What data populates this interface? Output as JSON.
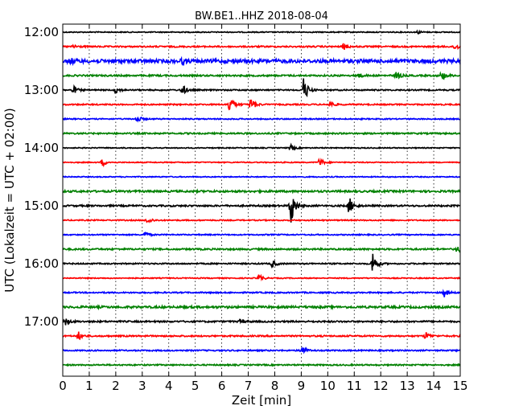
{
  "chart_data": {
    "type": "line",
    "title": "BW.BE1..HHZ 2018-08-04",
    "xlabel": "Zeit  [min]",
    "ylabel": "UTC (Lokalzeit = UTC + 02:00)",
    "xlim": [
      0,
      15
    ],
    "x_ticks": [
      "0",
      "1",
      "2",
      "3",
      "4",
      "5",
      "6",
      "7",
      "8",
      "9",
      "10",
      "11",
      "12",
      "13",
      "14",
      "15"
    ],
    "y_tick_labels": [
      "12:00",
      "13:00",
      "14:00",
      "15:00",
      "16:00",
      "17:00"
    ],
    "grid": "vertical dotted",
    "trace_colors": [
      "#000000",
      "#ff0000",
      "#0000ff",
      "#008000"
    ],
    "traces": [
      {
        "start": "12:00",
        "noise": 0.6,
        "events": [
          {
            "t": 13.4,
            "amp": 2
          }
        ]
      },
      {
        "start": "12:15",
        "noise": 0.9,
        "events": [
          {
            "t": 0.4,
            "amp": 3
          },
          {
            "t": 10.6,
            "amp": 4
          },
          {
            "t": 14.8,
            "amp": 5
          }
        ]
      },
      {
        "start": "12:30",
        "noise": 2.2,
        "events": [
          {
            "t": 0.3,
            "amp": 3
          },
          {
            "t": 4.5,
            "amp": 3
          }
        ]
      },
      {
        "start": "12:45",
        "noise": 1.0,
        "events": [
          {
            "t": 11.1,
            "amp": 5
          },
          {
            "t": 12.6,
            "amp": 5
          },
          {
            "t": 14.3,
            "amp": 6
          }
        ]
      },
      {
        "start": "13:00",
        "noise": 0.8,
        "events": [
          {
            "t": 0.4,
            "amp": 5
          },
          {
            "t": 2.0,
            "amp": 4
          },
          {
            "t": 4.5,
            "amp": 8
          },
          {
            "t": 9.1,
            "amp": 18
          }
        ]
      },
      {
        "start": "13:15",
        "noise": 0.8,
        "events": [
          {
            "t": 6.3,
            "amp": 14
          },
          {
            "t": 7.1,
            "amp": 10
          },
          {
            "t": 10.1,
            "amp": 4
          }
        ]
      },
      {
        "start": "13:30",
        "noise": 0.7,
        "events": [
          {
            "t": 2.8,
            "amp": 5
          }
        ]
      },
      {
        "start": "13:45",
        "noise": 0.9,
        "events": []
      },
      {
        "start": "14:00",
        "noise": 0.6,
        "events": [
          {
            "t": 8.6,
            "amp": 4
          }
        ]
      },
      {
        "start": "14:15",
        "noise": 0.6,
        "events": [
          {
            "t": 1.5,
            "amp": 5
          },
          {
            "t": 9.7,
            "amp": 6
          }
        ]
      },
      {
        "start": "14:30",
        "noise": 0.6,
        "events": []
      },
      {
        "start": "14:45",
        "noise": 1.2,
        "events": []
      },
      {
        "start": "15:00",
        "noise": 1.0,
        "events": [
          {
            "t": 8.6,
            "amp": 28
          },
          {
            "t": 10.8,
            "amp": 12
          }
        ]
      },
      {
        "start": "15:15",
        "noise": 0.7,
        "events": [
          {
            "t": 3.2,
            "amp": 5
          }
        ]
      },
      {
        "start": "15:30",
        "noise": 0.7,
        "events": [
          {
            "t": 3.1,
            "amp": 4
          }
        ]
      },
      {
        "start": "15:45",
        "noise": 1.0,
        "events": [
          {
            "t": 14.9,
            "amp": 6
          }
        ]
      },
      {
        "start": "16:00",
        "noise": 0.8,
        "events": [
          {
            "t": 7.9,
            "amp": 5
          },
          {
            "t": 11.7,
            "amp": 16
          }
        ]
      },
      {
        "start": "16:15",
        "noise": 0.6,
        "events": [
          {
            "t": 7.4,
            "amp": 5
          }
        ]
      },
      {
        "start": "16:30",
        "noise": 0.8,
        "events": [
          {
            "t": 14.4,
            "amp": 5
          }
        ]
      },
      {
        "start": "16:45",
        "noise": 1.3,
        "events": []
      },
      {
        "start": "17:00",
        "noise": 1.0,
        "events": [
          {
            "t": 0.1,
            "amp": 4
          },
          {
            "t": 6.7,
            "amp": 3
          }
        ]
      },
      {
        "start": "17:15",
        "noise": 0.9,
        "events": [
          {
            "t": 0.6,
            "amp": 5
          },
          {
            "t": 13.7,
            "amp": 5
          }
        ]
      },
      {
        "start": "17:30",
        "noise": 0.8,
        "events": [
          {
            "t": 9.0,
            "amp": 8
          }
        ]
      },
      {
        "start": "17:45",
        "noise": 0.8,
        "events": []
      }
    ]
  }
}
